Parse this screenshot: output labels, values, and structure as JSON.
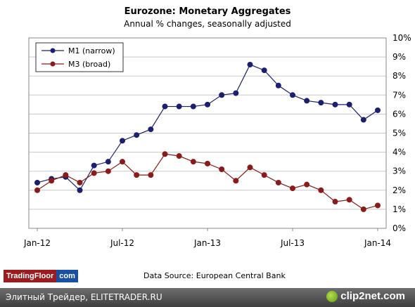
{
  "chart_data": {
    "type": "line",
    "title": "Eurozone: Monetary Aggregates",
    "subtitle": "Annual % changes, seasonally adjusted",
    "x": [
      "Jan-12",
      "Feb-12",
      "Mar-12",
      "Apr-12",
      "May-12",
      "Jun-12",
      "Jul-12",
      "Aug-12",
      "Sep-12",
      "Oct-12",
      "Nov-12",
      "Dec-12",
      "Jan-13",
      "Feb-13",
      "Mar-13",
      "Apr-13",
      "May-13",
      "Jun-13",
      "Jul-13",
      "Aug-13",
      "Sep-13",
      "Oct-13",
      "Nov-13",
      "Dec-13",
      "Jan-14"
    ],
    "x_tick_labels": [
      "Jan-12",
      "Jul-12",
      "Jan-13",
      "Jul-13",
      "Jan-14"
    ],
    "y_tick_labels": [
      "0%",
      "1%",
      "2%",
      "3%",
      "4%",
      "5%",
      "6%",
      "7%",
      "8%",
      "9%",
      "10%"
    ],
    "ylim": [
      0,
      10
    ],
    "y_axis_position": "right",
    "grid": "horizontal",
    "legend_placement": "top-left",
    "series": [
      {
        "name": "M1 (narrow)",
        "color": "#1b1f6e",
        "values": [
          2.4,
          2.6,
          2.7,
          2.0,
          3.3,
          3.5,
          4.6,
          4.9,
          5.2,
          6.4,
          6.4,
          6.4,
          6.5,
          7.0,
          7.1,
          8.6,
          8.3,
          7.5,
          7.0,
          6.7,
          6.6,
          6.5,
          6.5,
          5.7,
          6.2
        ]
      },
      {
        "name": "M3 (broad)",
        "color": "#8b1a1a",
        "values": [
          2.0,
          2.5,
          2.8,
          2.4,
          2.9,
          3.0,
          3.5,
          2.8,
          2.8,
          3.9,
          3.8,
          3.5,
          3.4,
          3.1,
          2.5,
          3.2,
          2.8,
          2.4,
          2.1,
          2.3,
          2.0,
          1.4,
          1.5,
          1.0,
          1.2
        ]
      }
    ]
  },
  "source_text": "Data Source: European Central Bank",
  "brand": {
    "part1": "TradingFloor",
    "part2": "com"
  },
  "footer": {
    "text": "Элитный Трейдер, ELITETRADER.RU",
    "logo": "clip2net.com"
  }
}
